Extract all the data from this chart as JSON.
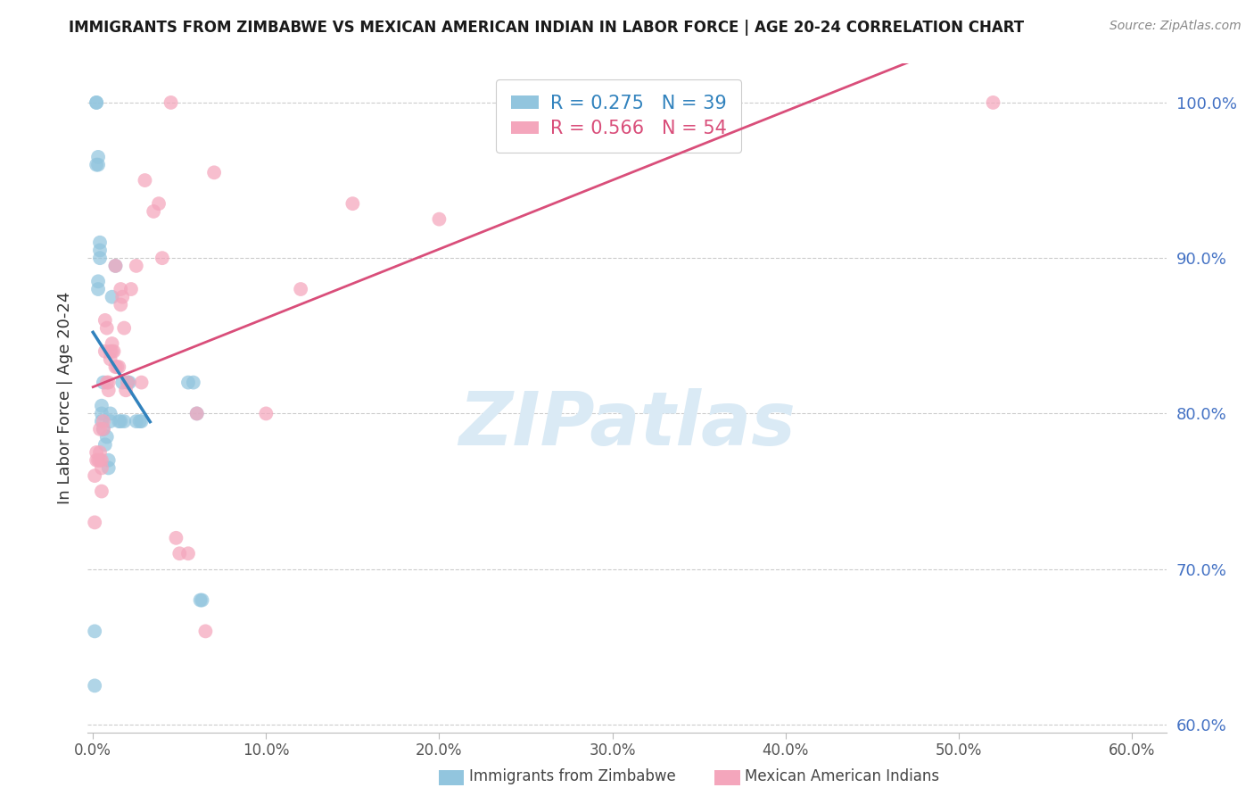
{
  "title": "IMMIGRANTS FROM ZIMBABWE VS MEXICAN AMERICAN INDIAN IN LABOR FORCE | AGE 20-24 CORRELATION CHART",
  "source": "Source: ZipAtlas.com",
  "ylabel": "In Labor Force | Age 20-24",
  "legend_label_blue": "Immigrants from Zimbabwe",
  "legend_label_pink": "Mexican American Indians",
  "R_blue": 0.275,
  "N_blue": 39,
  "R_pink": 0.566,
  "N_pink": 54,
  "xlim": [
    -0.003,
    0.62
  ],
  "ylim": [
    0.595,
    1.025
  ],
  "yticks": [
    0.6,
    0.7,
    0.8,
    0.9,
    1.0
  ],
  "xticks": [
    0.0,
    0.1,
    0.2,
    0.3,
    0.4,
    0.5,
    0.6
  ],
  "color_blue": "#92c5de",
  "color_blue_line": "#3182bd",
  "color_pink": "#f4a6bc",
  "color_pink_line": "#d94e7a",
  "watermark_text": "ZIPatlas",
  "watermark_color": "#daeaf5",
  "blue_x": [
    0.001,
    0.001,
    0.002,
    0.002,
    0.002,
    0.003,
    0.003,
    0.003,
    0.003,
    0.004,
    0.004,
    0.004,
    0.005,
    0.005,
    0.005,
    0.006,
    0.006,
    0.007,
    0.008,
    0.009,
    0.009,
    0.01,
    0.01,
    0.011,
    0.013,
    0.015,
    0.016,
    0.017,
    0.018,
    0.02,
    0.021,
    0.025,
    0.027,
    0.028,
    0.055,
    0.058,
    0.06,
    0.062,
    0.063
  ],
  "blue_y": [
    0.625,
    0.66,
    1.0,
    1.0,
    0.96,
    0.965,
    0.96,
    0.885,
    0.88,
    0.91,
    0.905,
    0.9,
    0.805,
    0.8,
    0.795,
    0.82,
    0.79,
    0.78,
    0.785,
    0.77,
    0.765,
    0.8,
    0.795,
    0.875,
    0.895,
    0.795,
    0.795,
    0.82,
    0.795,
    0.82,
    0.82,
    0.795,
    0.795,
    0.795,
    0.82,
    0.82,
    0.8,
    0.68,
    0.68
  ],
  "pink_x": [
    0.001,
    0.001,
    0.002,
    0.002,
    0.003,
    0.004,
    0.004,
    0.004,
    0.005,
    0.005,
    0.005,
    0.006,
    0.006,
    0.007,
    0.007,
    0.008,
    0.008,
    0.009,
    0.009,
    0.01,
    0.01,
    0.011,
    0.011,
    0.012,
    0.013,
    0.013,
    0.014,
    0.015,
    0.016,
    0.016,
    0.017,
    0.018,
    0.019,
    0.02,
    0.022,
    0.025,
    0.028,
    0.03,
    0.035,
    0.038,
    0.04,
    0.045,
    0.048,
    0.05,
    0.055,
    0.06,
    0.065,
    0.07,
    0.1,
    0.12,
    0.15,
    0.2,
    0.25,
    0.52
  ],
  "pink_y": [
    0.76,
    0.73,
    0.77,
    0.775,
    0.77,
    0.79,
    0.775,
    0.77,
    0.77,
    0.765,
    0.75,
    0.795,
    0.79,
    0.86,
    0.84,
    0.855,
    0.82,
    0.82,
    0.815,
    0.84,
    0.835,
    0.845,
    0.84,
    0.84,
    0.83,
    0.895,
    0.83,
    0.83,
    0.88,
    0.87,
    0.875,
    0.855,
    0.815,
    0.82,
    0.88,
    0.895,
    0.82,
    0.95,
    0.93,
    0.935,
    0.9,
    1.0,
    0.72,
    0.71,
    0.71,
    0.8,
    0.66,
    0.955,
    0.8,
    0.88,
    0.935,
    0.925,
    1.0,
    1.0
  ],
  "blue_line_x": [
    0.0,
    0.033
  ],
  "pink_line_x": [
    0.0,
    0.52
  ]
}
